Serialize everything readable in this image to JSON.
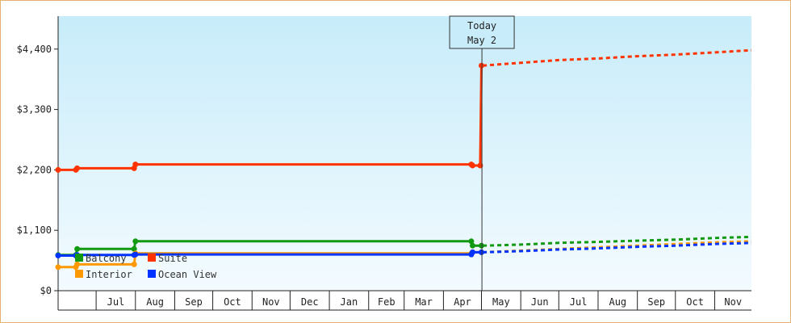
{
  "chart_data": {
    "type": "line",
    "title": "",
    "xlabel": "",
    "ylabel": "",
    "ylim": [
      0,
      5000
    ],
    "y_ticks": [
      {
        "value": 0,
        "label": "$0"
      },
      {
        "value": 1100,
        "label": "$1,100"
      },
      {
        "value": 2200,
        "label": "$2,200"
      },
      {
        "value": 3300,
        "label": "$3,300"
      },
      {
        "value": 4400,
        "label": "$4,400"
      }
    ],
    "x_ticks": [
      "Jul",
      "Aug",
      "Sep",
      "Oct",
      "Nov",
      "Dec",
      "Jan",
      "Feb",
      "Mar",
      "Apr",
      "May",
      "Jun",
      "Jul",
      "Aug",
      "Sep",
      "Oct",
      "Nov"
    ],
    "today": {
      "line1": "Today",
      "line2": "May 2"
    },
    "grid": false,
    "legend_position": "bottom-left",
    "series": [
      {
        "name": "Suite",
        "color": "#ff3300",
        "history": [
          {
            "x": "Jun 1",
            "y": 2200
          },
          {
            "x": "Jun 15",
            "y": 2200
          },
          {
            "x": "Jun 16",
            "y": 2230
          },
          {
            "x": "Jul 31",
            "y": 2230
          },
          {
            "x": "Aug 1",
            "y": 2300
          },
          {
            "x": "Apr 23",
            "y": 2300
          },
          {
            "x": "Apr 24",
            "y": 2280
          },
          {
            "x": "Apr 30",
            "y": 2280
          },
          {
            "x": "May 1",
            "y": 4100
          }
        ],
        "forecast": [
          {
            "x": "May 2",
            "y": 4100
          },
          {
            "x": "Jun 1",
            "y": 4150
          },
          {
            "x": "Jul 1",
            "y": 4200
          },
          {
            "x": "Aug 1",
            "y": 4230
          },
          {
            "x": "Sep 1",
            "y": 4270
          },
          {
            "x": "Oct 1",
            "y": 4300
          },
          {
            "x": "Nov 1",
            "y": 4340
          },
          {
            "x": "Nov 30",
            "y": 4380
          }
        ]
      },
      {
        "name": "Balcony",
        "color": "#119911",
        "history": [
          {
            "x": "Jun 1",
            "y": 650
          },
          {
            "x": "Jun 15",
            "y": 650
          },
          {
            "x": "Jun 16",
            "y": 760
          },
          {
            "x": "Jul 31",
            "y": 760
          },
          {
            "x": "Aug 1",
            "y": 900
          },
          {
            "x": "Apr 23",
            "y": 900
          },
          {
            "x": "Apr 24",
            "y": 820
          },
          {
            "x": "May 1",
            "y": 820
          }
        ],
        "forecast": [
          {
            "x": "May 2",
            "y": 820
          },
          {
            "x": "Jun 1",
            "y": 840
          },
          {
            "x": "Jul 1",
            "y": 870
          },
          {
            "x": "Aug 1",
            "y": 890
          },
          {
            "x": "Sep 1",
            "y": 910
          },
          {
            "x": "Oct 1",
            "y": 930
          },
          {
            "x": "Nov 1",
            "y": 960
          },
          {
            "x": "Nov 30",
            "y": 980
          }
        ]
      },
      {
        "name": "Interior",
        "color": "#ff9900",
        "history": [
          {
            "x": "Jun 1",
            "y": 430
          },
          {
            "x": "Jun 15",
            "y": 430
          },
          {
            "x": "Jun 16",
            "y": 480
          },
          {
            "x": "Jul 31",
            "y": 480
          },
          {
            "x": "Aug 1",
            "y": 680
          },
          {
            "x": "Apr 23",
            "y": 680
          },
          {
            "x": "Apr 24",
            "y": 700
          },
          {
            "x": "May 1",
            "y": 700
          }
        ],
        "forecast": [
          {
            "x": "May 2",
            "y": 700
          },
          {
            "x": "Jun 1",
            "y": 730
          },
          {
            "x": "Jul 1",
            "y": 760
          },
          {
            "x": "Aug 1",
            "y": 790
          },
          {
            "x": "Sep 1",
            "y": 820
          },
          {
            "x": "Oct 1",
            "y": 850
          },
          {
            "x": "Nov 1",
            "y": 880
          },
          {
            "x": "Nov 30",
            "y": 900
          }
        ]
      },
      {
        "name": "Ocean View",
        "color": "#0033ff",
        "history": [
          {
            "x": "Jun 1",
            "y": 640
          },
          {
            "x": "Jun 15",
            "y": 640
          },
          {
            "x": "Jun 16",
            "y": 650
          },
          {
            "x": "Jul 31",
            "y": 650
          },
          {
            "x": "Aug 1",
            "y": 660
          },
          {
            "x": "Apr 23",
            "y": 660
          },
          {
            "x": "Apr 24",
            "y": 700
          },
          {
            "x": "May 1",
            "y": 700
          }
        ],
        "forecast": [
          {
            "x": "May 2",
            "y": 700
          },
          {
            "x": "Jun 1",
            "y": 720
          },
          {
            "x": "Jul 1",
            "y": 750
          },
          {
            "x": "Aug 1",
            "y": 770
          },
          {
            "x": "Sep 1",
            "y": 800
          },
          {
            "x": "Oct 1",
            "y": 820
          },
          {
            "x": "Nov 1",
            "y": 850
          },
          {
            "x": "Nov 30",
            "y": 870
          }
        ]
      }
    ],
    "legend": [
      {
        "name": "Balcony",
        "color": "#119911"
      },
      {
        "name": "Suite",
        "color": "#ff3300"
      },
      {
        "name": "Interior",
        "color": "#ff9900"
      },
      {
        "name": "Ocean View",
        "color": "#0033ff"
      }
    ]
  }
}
